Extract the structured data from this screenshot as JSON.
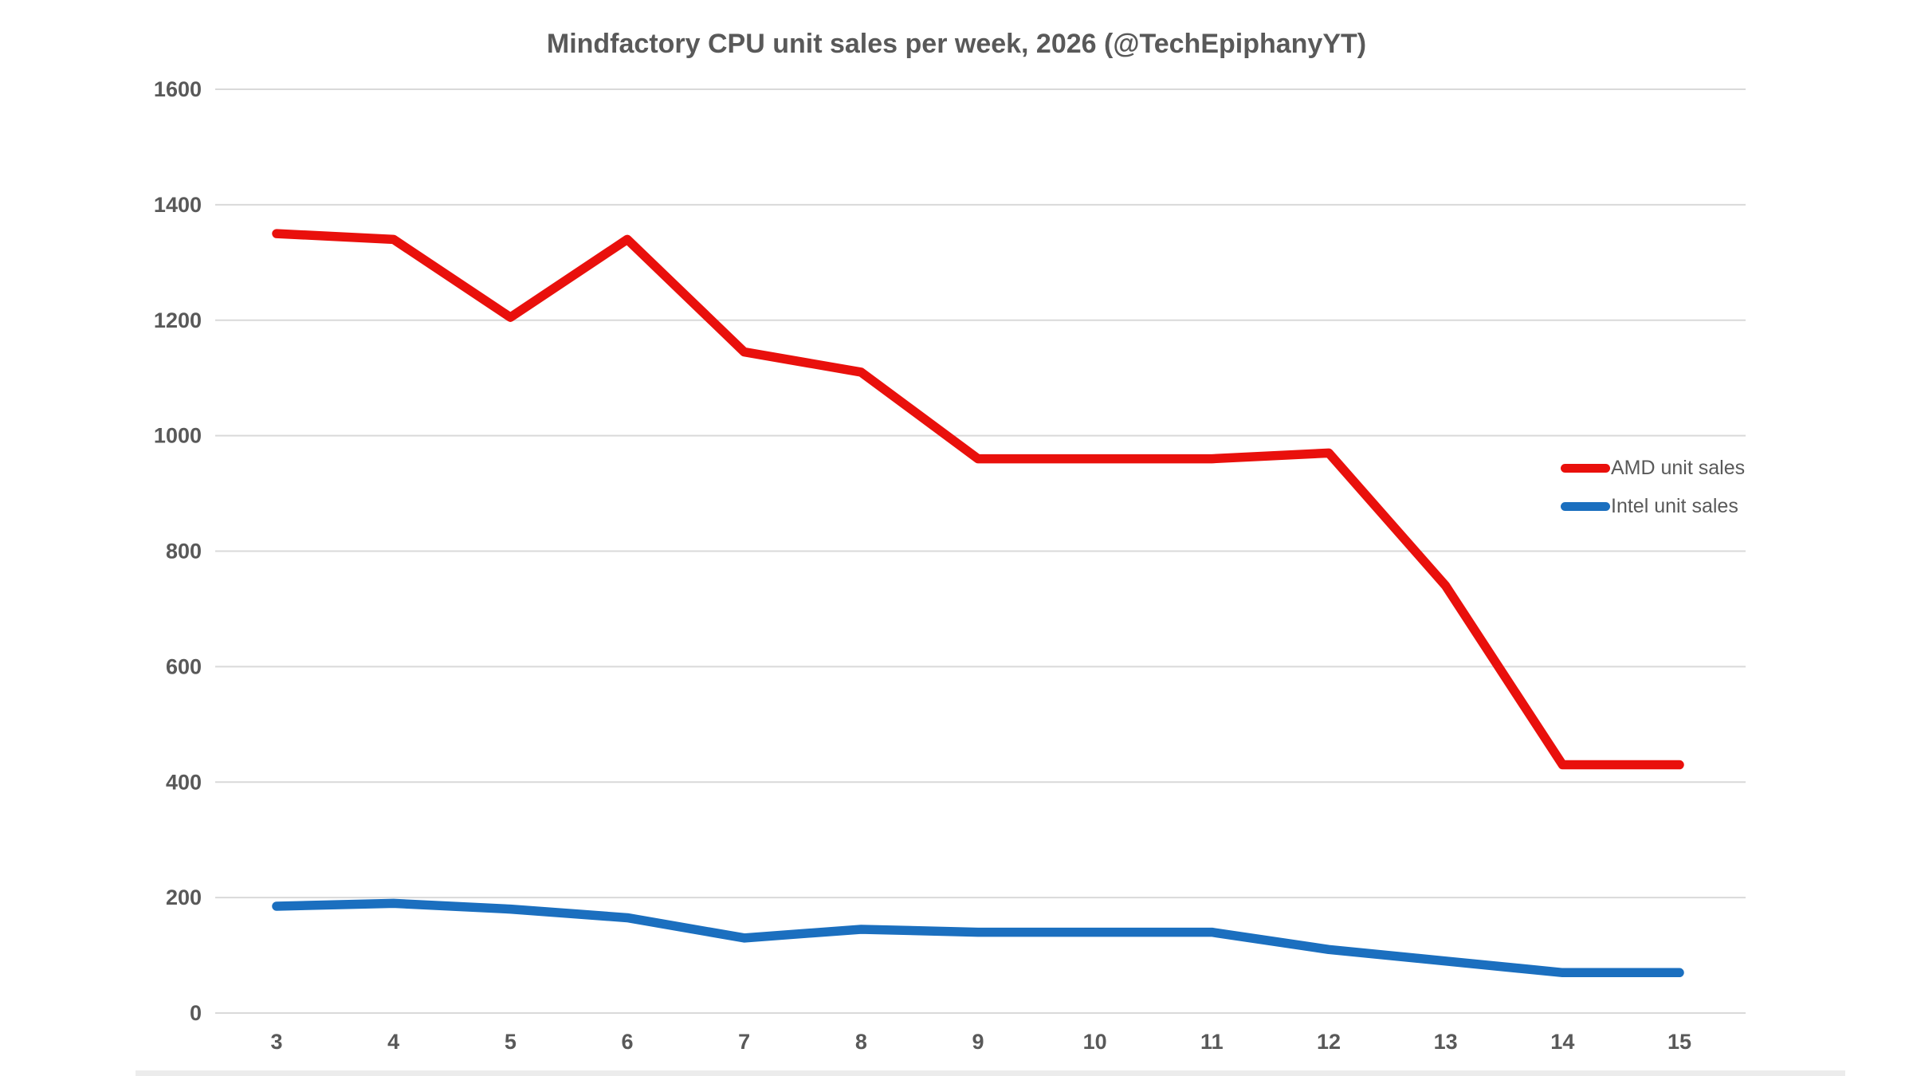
{
  "chart_data": {
    "type": "line",
    "title": "Mindfactory CPU unit sales per week, 2026 (@TechEpiphanyYT)",
    "xlabel": "",
    "ylabel": "",
    "x": [
      3,
      4,
      5,
      6,
      7,
      8,
      9,
      10,
      11,
      12,
      13,
      14,
      15
    ],
    "series": [
      {
        "name": "AMD unit sales",
        "color": "#e9100c",
        "values": [
          1350,
          1340,
          1205,
          1340,
          1145,
          1110,
          960,
          960,
          960,
          970,
          740,
          430,
          430
        ]
      },
      {
        "name": "Intel unit sales",
        "color": "#1b6fbf",
        "values": [
          185,
          190,
          180,
          165,
          130,
          145,
          140,
          140,
          140,
          110,
          90,
          70,
          70
        ]
      }
    ],
    "ylim": [
      0,
      1600
    ],
    "y_ticks": [
      0,
      200,
      400,
      600,
      800,
      1000,
      1200,
      1400,
      1600
    ],
    "grid": "horizontal",
    "grid_color": "#d9d9d9",
    "text_color": "#595959",
    "legend_position": "right-middle"
  }
}
